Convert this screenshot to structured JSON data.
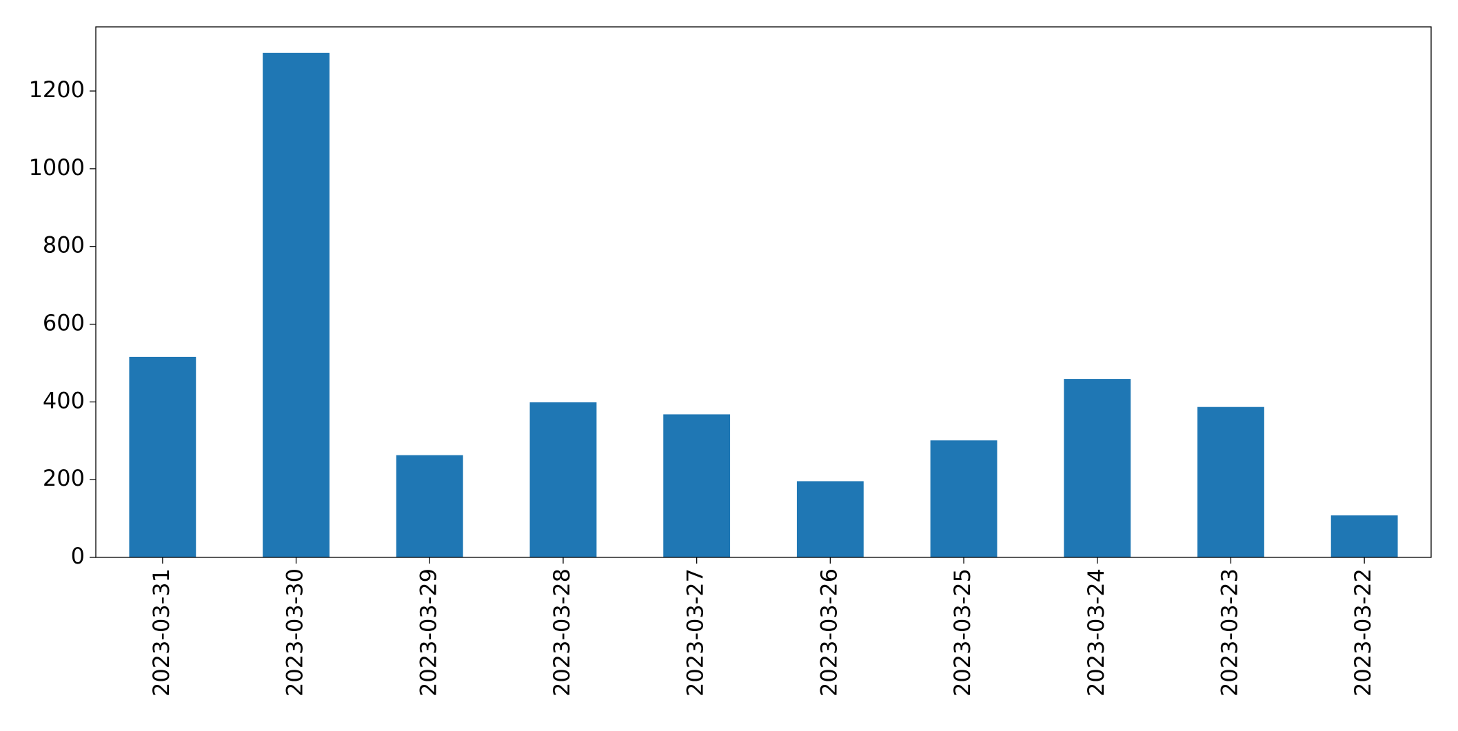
{
  "chart_data": {
    "type": "bar",
    "categories": [
      "2023-03-31",
      "2023-03-30",
      "2023-03-29",
      "2023-03-28",
      "2023-03-27",
      "2023-03-26",
      "2023-03-25",
      "2023-03-24",
      "2023-03-23",
      "2023-03-22"
    ],
    "values": [
      516,
      1298,
      263,
      399,
      368,
      196,
      301,
      459,
      387,
      108
    ],
    "color": "#1f77b4",
    "ylim": [
      0,
      1365
    ],
    "yticks": [
      0,
      200,
      400,
      600,
      800,
      1000,
      1200
    ],
    "grid": false
  }
}
